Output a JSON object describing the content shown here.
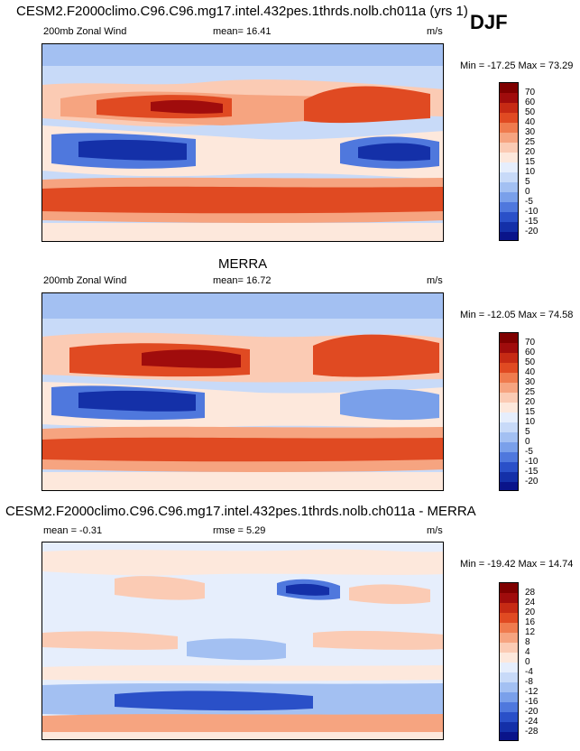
{
  "season": "DJF",
  "panels": [
    {
      "title": "CESM2.F2000climo.C96.C96.mg17.intel.432pes.1thrds.nolb.ch011a (yrs 1)",
      "variable": "200mb Zonal Wind",
      "stat_label": "mean=",
      "stat_value": "16.41",
      "units": "m/s",
      "minmax": "Min = -17.25 Max =  73.29",
      "colorbar_labels": [
        "70",
        "60",
        "50",
        "40",
        "30",
        "25",
        "20",
        "15",
        "10",
        "5",
        "0",
        "-5",
        "-10",
        "-15",
        "-20"
      ]
    },
    {
      "title": "MERRA",
      "variable": "200mb Zonal Wind",
      "stat_label": "mean=",
      "stat_value": "16.72",
      "units": "m/s",
      "minmax": "Min = -12.05 Max =  74.58",
      "colorbar_labels": [
        "70",
        "60",
        "50",
        "40",
        "30",
        "25",
        "20",
        "15",
        "10",
        "5",
        "0",
        "-5",
        "-10",
        "-15",
        "-20"
      ]
    },
    {
      "title": "CESM2.F2000climo.C96.C96.mg17.intel.432pes.1thrds.nolb.ch011a - MERRA",
      "variable": "mean =  -0.31",
      "stat_label": "rmse =",
      "stat_value": "5.29",
      "units": "m/s",
      "minmax": "Min = -19.42 Max =  14.74",
      "colorbar_labels": [
        "28",
        "24",
        "20",
        "16",
        "12",
        "8",
        "4",
        "0",
        "-4",
        "-8",
        "-12",
        "-16",
        "-20",
        "-24",
        "-28"
      ]
    }
  ],
  "colors": [
    "#7f0000",
    "#a00c0c",
    "#c62a14",
    "#e04a22",
    "#ef7b4e",
    "#f6a480",
    "#fbcbb4",
    "#fde8dc",
    "#e6eefc",
    "#c8daf8",
    "#a3c0f2",
    "#7aa0ea",
    "#4f78dd",
    "#2a50c8",
    "#1430a8",
    "#0a148a"
  ]
}
